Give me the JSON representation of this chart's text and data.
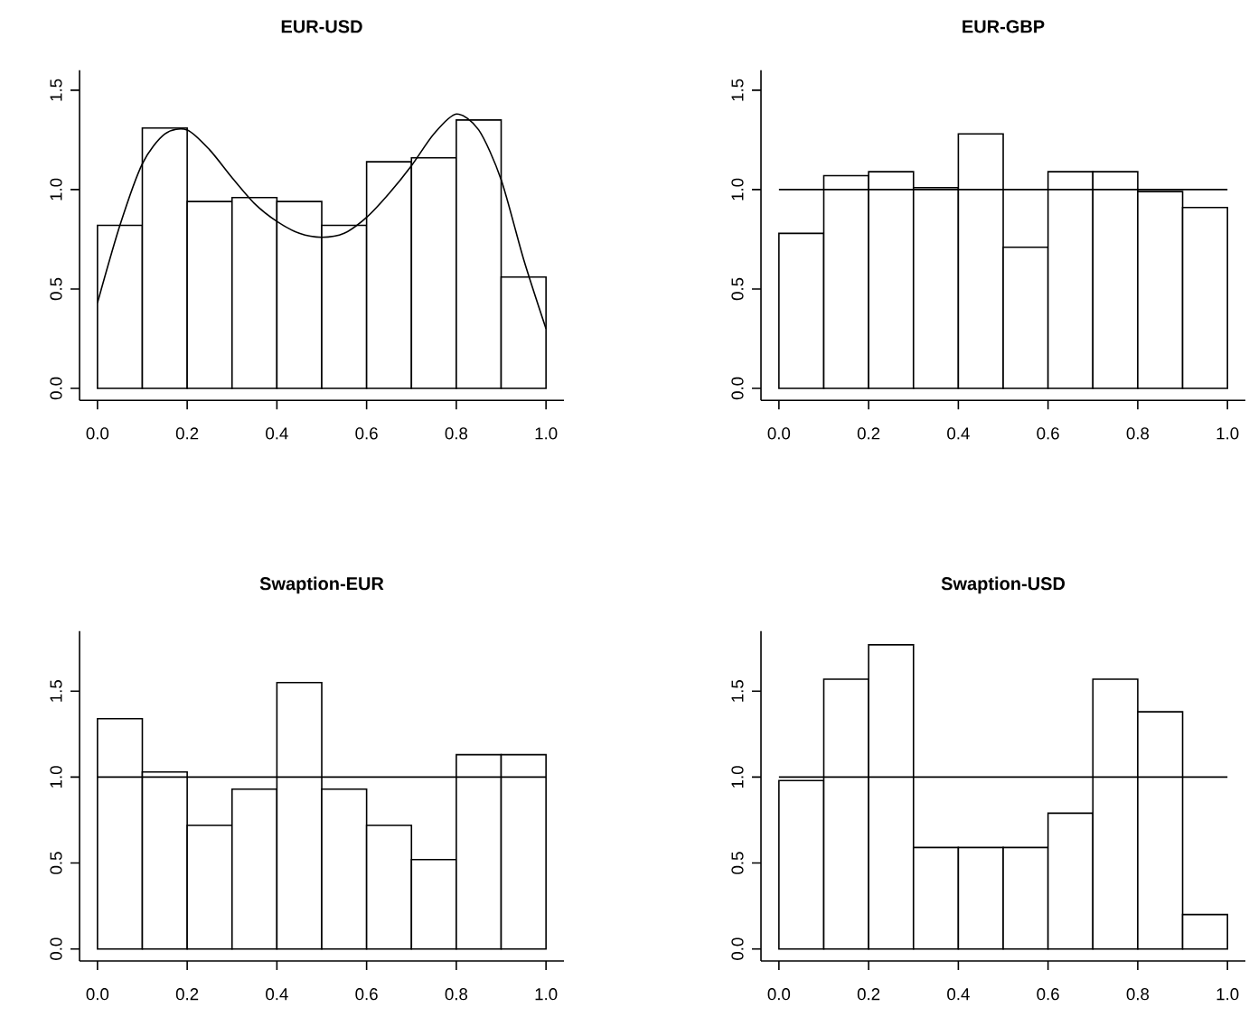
{
  "chart_data": [
    {
      "type": "histogram",
      "title": "EUR-USD",
      "bins": [
        0,
        0.1,
        0.2,
        0.3,
        0.4,
        0.5,
        0.6,
        0.7,
        0.8,
        0.9,
        1.0
      ],
      "values": [
        0.82,
        1.31,
        0.94,
        0.96,
        0.94,
        0.82,
        1.14,
        1.16,
        1.35,
        0.56
      ],
      "series": [
        {
          "type": "line",
          "x": [
            0,
            0.05,
            0.1,
            0.15,
            0.2,
            0.25,
            0.3,
            0.35,
            0.4,
            0.45,
            0.5,
            0.55,
            0.6,
            0.65,
            0.7,
            0.75,
            0.8,
            0.85,
            0.9,
            0.95,
            1.0
          ],
          "values": [
            0.43,
            0.82,
            1.13,
            1.28,
            1.3,
            1.2,
            1.06,
            0.93,
            0.84,
            0.78,
            0.76,
            0.78,
            0.86,
            0.98,
            1.12,
            1.28,
            1.38,
            1.3,
            1.05,
            0.65,
            0.3
          ]
        }
      ],
      "xlim": [
        -0.04,
        1.04
      ],
      "ylim": [
        -0.06,
        1.6
      ],
      "xticks": [
        {
          "value": 0,
          "label": "0.0"
        },
        {
          "value": 0.2,
          "label": "0.2"
        },
        {
          "value": 0.4,
          "label": "0.4"
        },
        {
          "value": 0.6,
          "label": "0.6"
        },
        {
          "value": 0.8,
          "label": "0.8"
        },
        {
          "value": 1.0,
          "label": "1.0"
        }
      ],
      "yticks": [
        {
          "value": 0,
          "label": "0.0"
        },
        {
          "value": 0.5,
          "label": "0.5"
        },
        {
          "value": 1.0,
          "label": "1.0"
        },
        {
          "value": 1.5,
          "label": "1.5"
        }
      ]
    },
    {
      "type": "histogram",
      "title": "EUR-GBP",
      "bins": [
        0,
        0.1,
        0.2,
        0.3,
        0.4,
        0.5,
        0.6,
        0.7,
        0.8,
        0.9,
        1.0
      ],
      "values": [
        0.78,
        1.07,
        1.09,
        1.01,
        1.28,
        0.71,
        1.09,
        1.09,
        0.99,
        0.91
      ],
      "ref_lines": [
        {
          "axis": "y",
          "value": 1.0
        }
      ],
      "xlim": [
        -0.04,
        1.04
      ],
      "ylim": [
        -0.06,
        1.6
      ],
      "xticks": [
        {
          "value": 0,
          "label": "0.0"
        },
        {
          "value": 0.2,
          "label": "0.2"
        },
        {
          "value": 0.4,
          "label": "0.4"
        },
        {
          "value": 0.6,
          "label": "0.6"
        },
        {
          "value": 0.8,
          "label": "0.8"
        },
        {
          "value": 1.0,
          "label": "1.0"
        }
      ],
      "yticks": [
        {
          "value": 0,
          "label": "0.0"
        },
        {
          "value": 0.5,
          "label": "0.5"
        },
        {
          "value": 1.0,
          "label": "1.0"
        },
        {
          "value": 1.5,
          "label": "1.5"
        }
      ]
    },
    {
      "type": "histogram",
      "title": "Swaption-EUR",
      "bins": [
        0,
        0.1,
        0.2,
        0.3,
        0.4,
        0.5,
        0.6,
        0.7,
        0.8,
        0.9,
        1.0
      ],
      "values": [
        1.34,
        1.03,
        0.72,
        0.93,
        1.55,
        0.93,
        0.72,
        0.52,
        1.13,
        1.13
      ],
      "ref_lines": [
        {
          "axis": "y",
          "value": 1.0
        }
      ],
      "xlim": [
        -0.04,
        1.04
      ],
      "ylim": [
        -0.07,
        1.85
      ],
      "xticks": [
        {
          "value": 0,
          "label": "0.0"
        },
        {
          "value": 0.2,
          "label": "0.2"
        },
        {
          "value": 0.4,
          "label": "0.4"
        },
        {
          "value": 0.6,
          "label": "0.6"
        },
        {
          "value": 0.8,
          "label": "0.8"
        },
        {
          "value": 1.0,
          "label": "1.0"
        }
      ],
      "yticks": [
        {
          "value": 0,
          "label": "0.0"
        },
        {
          "value": 0.5,
          "label": "0.5"
        },
        {
          "value": 1.0,
          "label": "1.0"
        },
        {
          "value": 1.5,
          "label": "1.5"
        }
      ]
    },
    {
      "type": "histogram",
      "title": "Swaption-USD",
      "bins": [
        0,
        0.1,
        0.2,
        0.3,
        0.4,
        0.5,
        0.6,
        0.7,
        0.8,
        0.9,
        1.0
      ],
      "values": [
        0.98,
        1.57,
        1.77,
        0.59,
        0.59,
        0.59,
        0.79,
        1.57,
        1.38,
        0.2
      ],
      "ref_lines": [
        {
          "axis": "y",
          "value": 1.0
        }
      ],
      "xlim": [
        -0.04,
        1.04
      ],
      "ylim": [
        -0.07,
        1.85
      ],
      "xticks": [
        {
          "value": 0,
          "label": "0.0"
        },
        {
          "value": 0.2,
          "label": "0.2"
        },
        {
          "value": 0.4,
          "label": "0.4"
        },
        {
          "value": 0.6,
          "label": "0.6"
        },
        {
          "value": 0.8,
          "label": "0.8"
        },
        {
          "value": 1.0,
          "label": "1.0"
        }
      ],
      "yticks": [
        {
          "value": 0,
          "label": "0.0"
        },
        {
          "value": 0.5,
          "label": "0.5"
        },
        {
          "value": 1.0,
          "label": "1.0"
        },
        {
          "value": 1.5,
          "label": "1.5"
        }
      ]
    }
  ]
}
